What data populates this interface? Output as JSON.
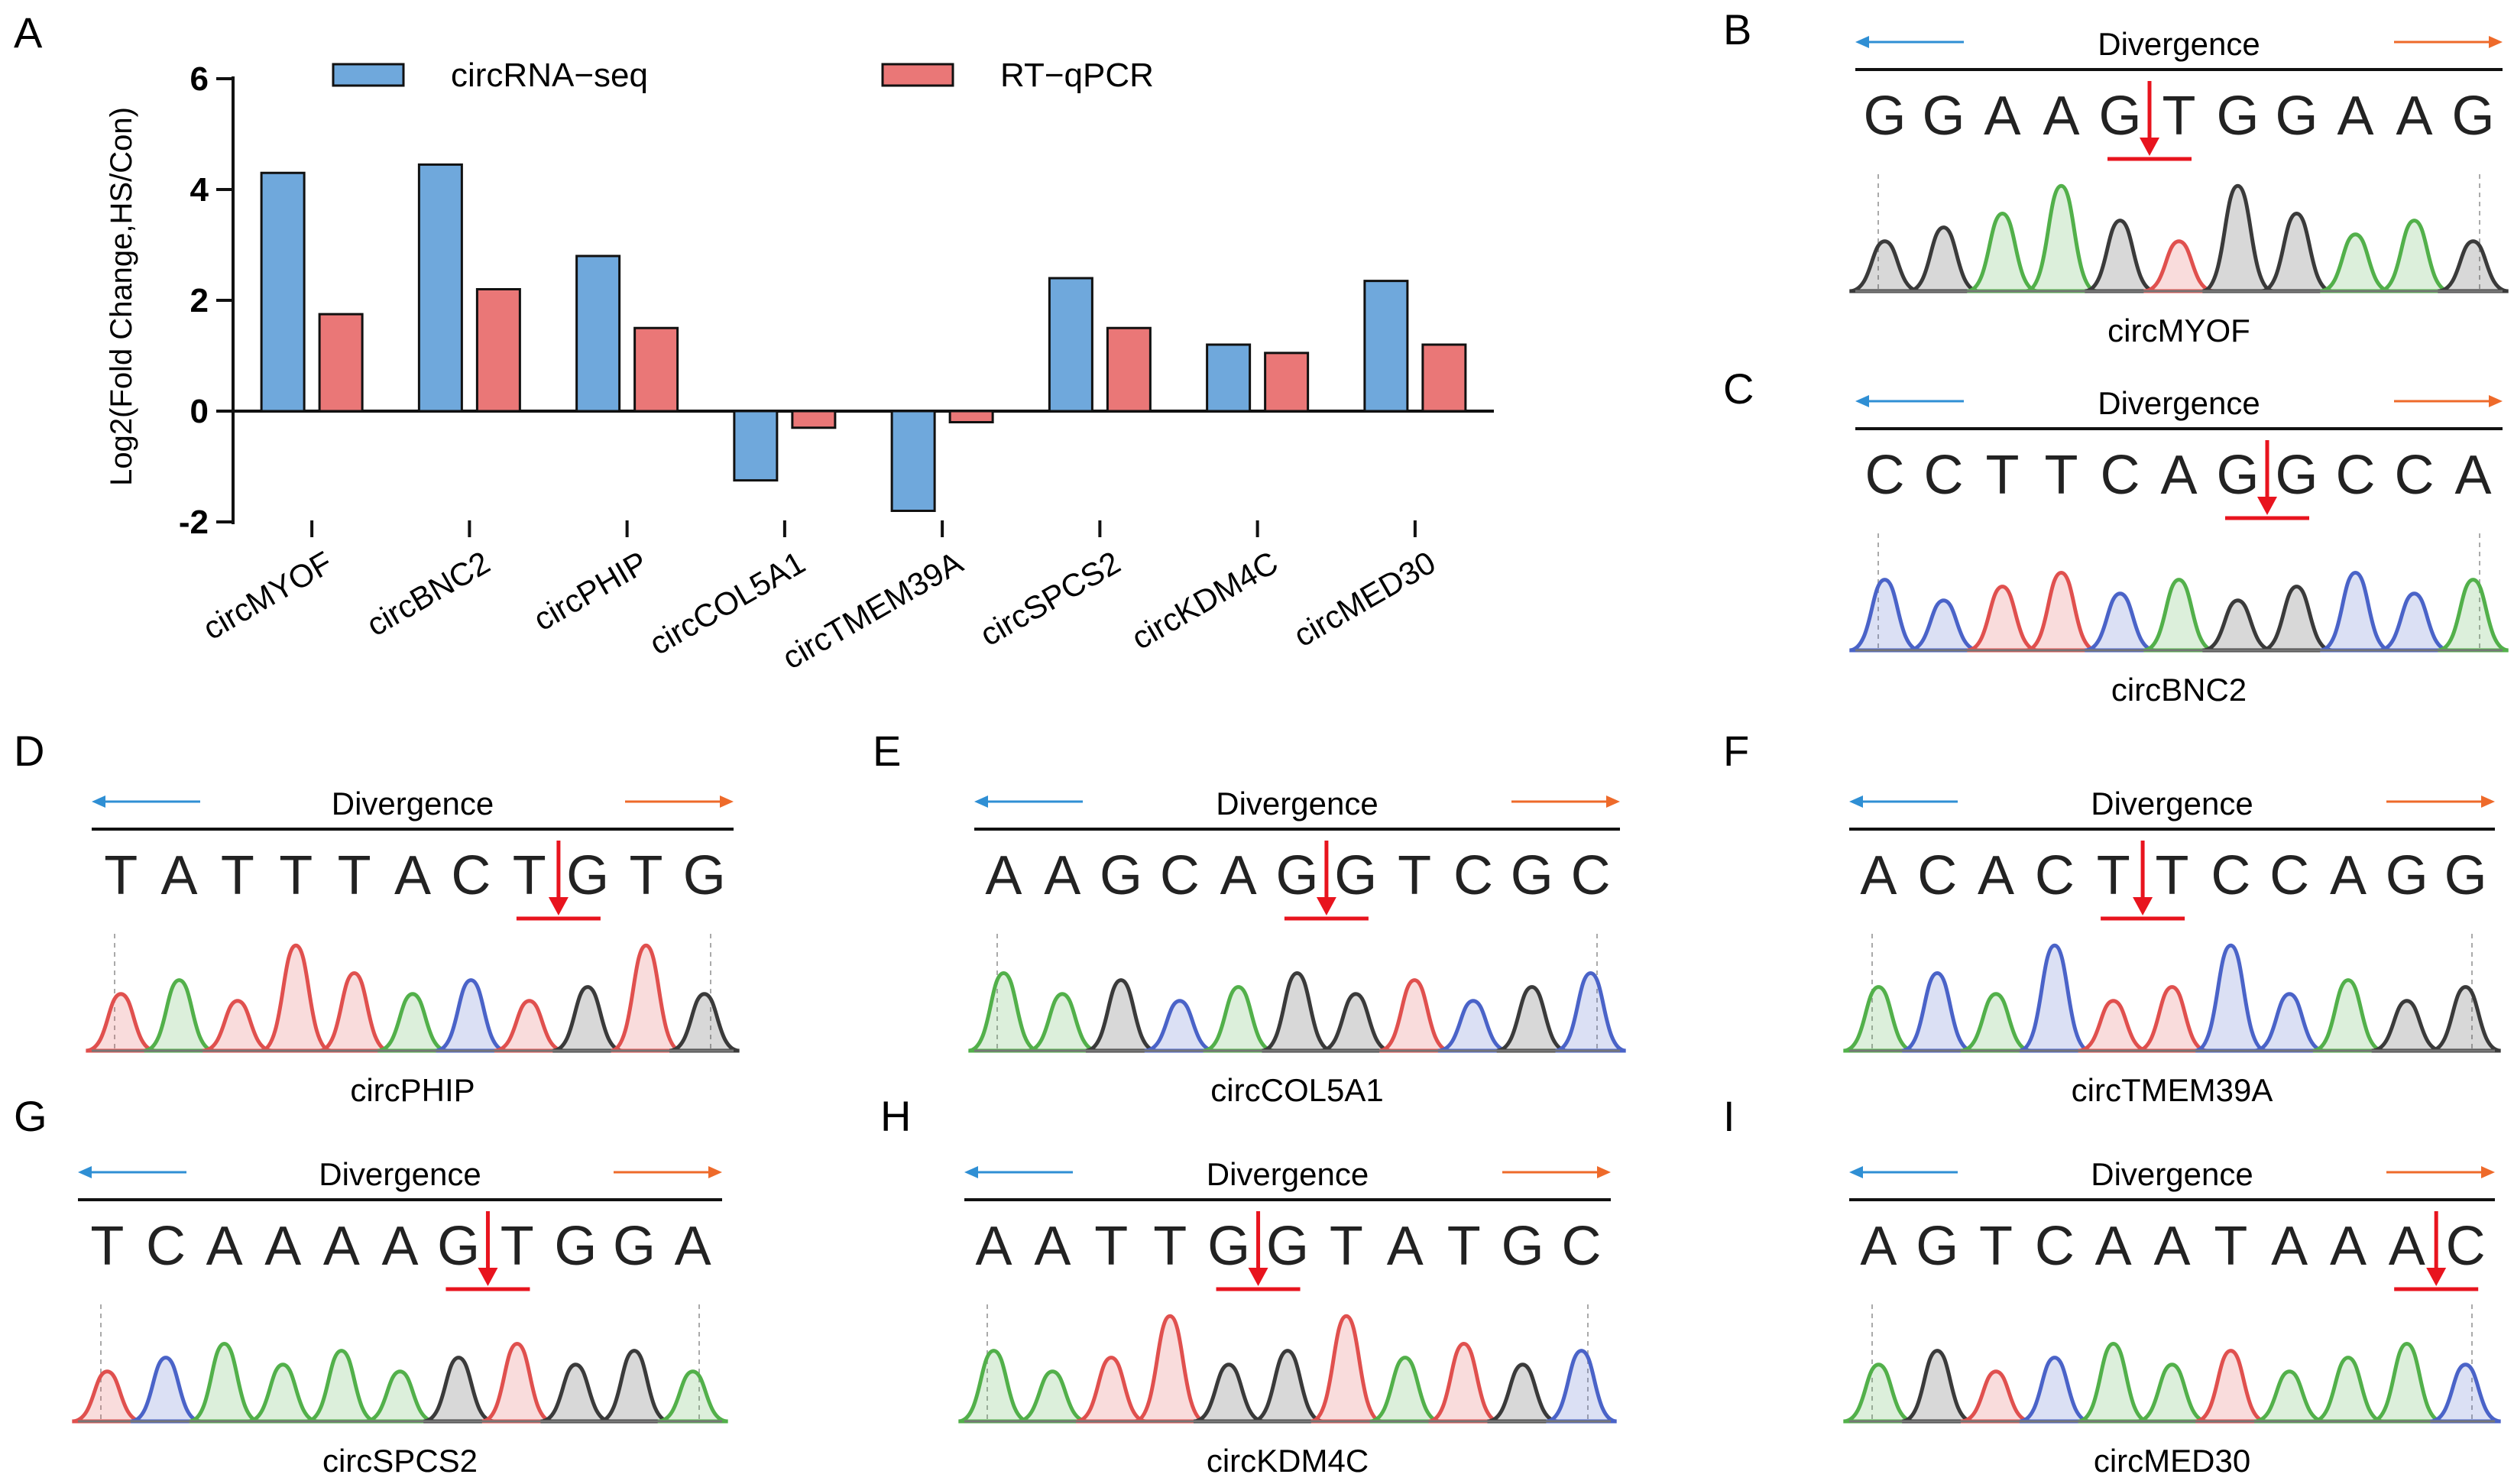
{
  "chart_data": {
    "type": "bar",
    "panel_label": "A",
    "ylabel": "Log2(Fold Change,HS/Con)",
    "ylim": [
      -2,
      6
    ],
    "yticks": [
      "6",
      "4",
      "2",
      "0",
      "-2"
    ],
    "ytick_values": [
      6,
      4,
      2,
      0,
      -2
    ],
    "categories": [
      "circMYOF",
      "circBNC2",
      "circPHIP",
      "circCOL5A1",
      "circTMEM39A",
      "circSPCS2",
      "circKDM4C",
      "circMED30"
    ],
    "series": [
      {
        "name": "circRNA-seq",
        "label": "circRNA−seq",
        "color": "#6fa8dc",
        "values": [
          4.3,
          4.45,
          2.8,
          -1.25,
          -1.8,
          2.4,
          1.2,
          2.35
        ]
      },
      {
        "name": "RT-qPCR",
        "label": "RT−qPCR",
        "color": "#ea7777",
        "values": [
          1.75,
          2.2,
          1.5,
          -0.3,
          -0.2,
          1.5,
          1.05,
          1.2
        ]
      }
    ]
  },
  "sequencing_panels": [
    {
      "label": "B",
      "title": "Divergence",
      "sequence": "GGAAGTGGAAG",
      "gene": "circMYOF",
      "junction_index": 5
    },
    {
      "label": "C",
      "title": "Divergence",
      "sequence": "CCTTCAGGCCA",
      "gene": "circBNC2",
      "junction_index": 7
    },
    {
      "label": "D",
      "title": "Divergence",
      "sequence": "TATTTACTGTG",
      "gene": "circPHIP",
      "junction_index": 8
    },
    {
      "label": "E",
      "title": "Divergence",
      "sequence": "AAGCAGGTCGC",
      "gene": "circCOL5A1",
      "junction_index": 6
    },
    {
      "label": "F",
      "title": "Divergence",
      "sequence": "ACACTTCCAGG",
      "gene": "circTMEM39A",
      "junction_index": 5
    },
    {
      "label": "G",
      "title": "Divergence",
      "sequence": "TCAAAAGTGGA",
      "gene": "circSPCS2",
      "junction_index": 7
    },
    {
      "label": "H",
      "title": "Divergence",
      "sequence": "AATTGGTATGC",
      "gene": "circKDM4C",
      "junction_index": 5
    },
    {
      "label": "I",
      "title": "Divergence",
      "sequence": "AGTCAATAAAC",
      "gene": "circMED30",
      "junction_index": 10
    }
  ],
  "colors": {
    "A": "#52b04a",
    "C": "#4a63c8",
    "G": "#3a3a3a",
    "T": "#e0504e",
    "arrow_left": "#2f8fd4",
    "arrow_right": "#ee6a2a",
    "junction": "#e8141e"
  }
}
